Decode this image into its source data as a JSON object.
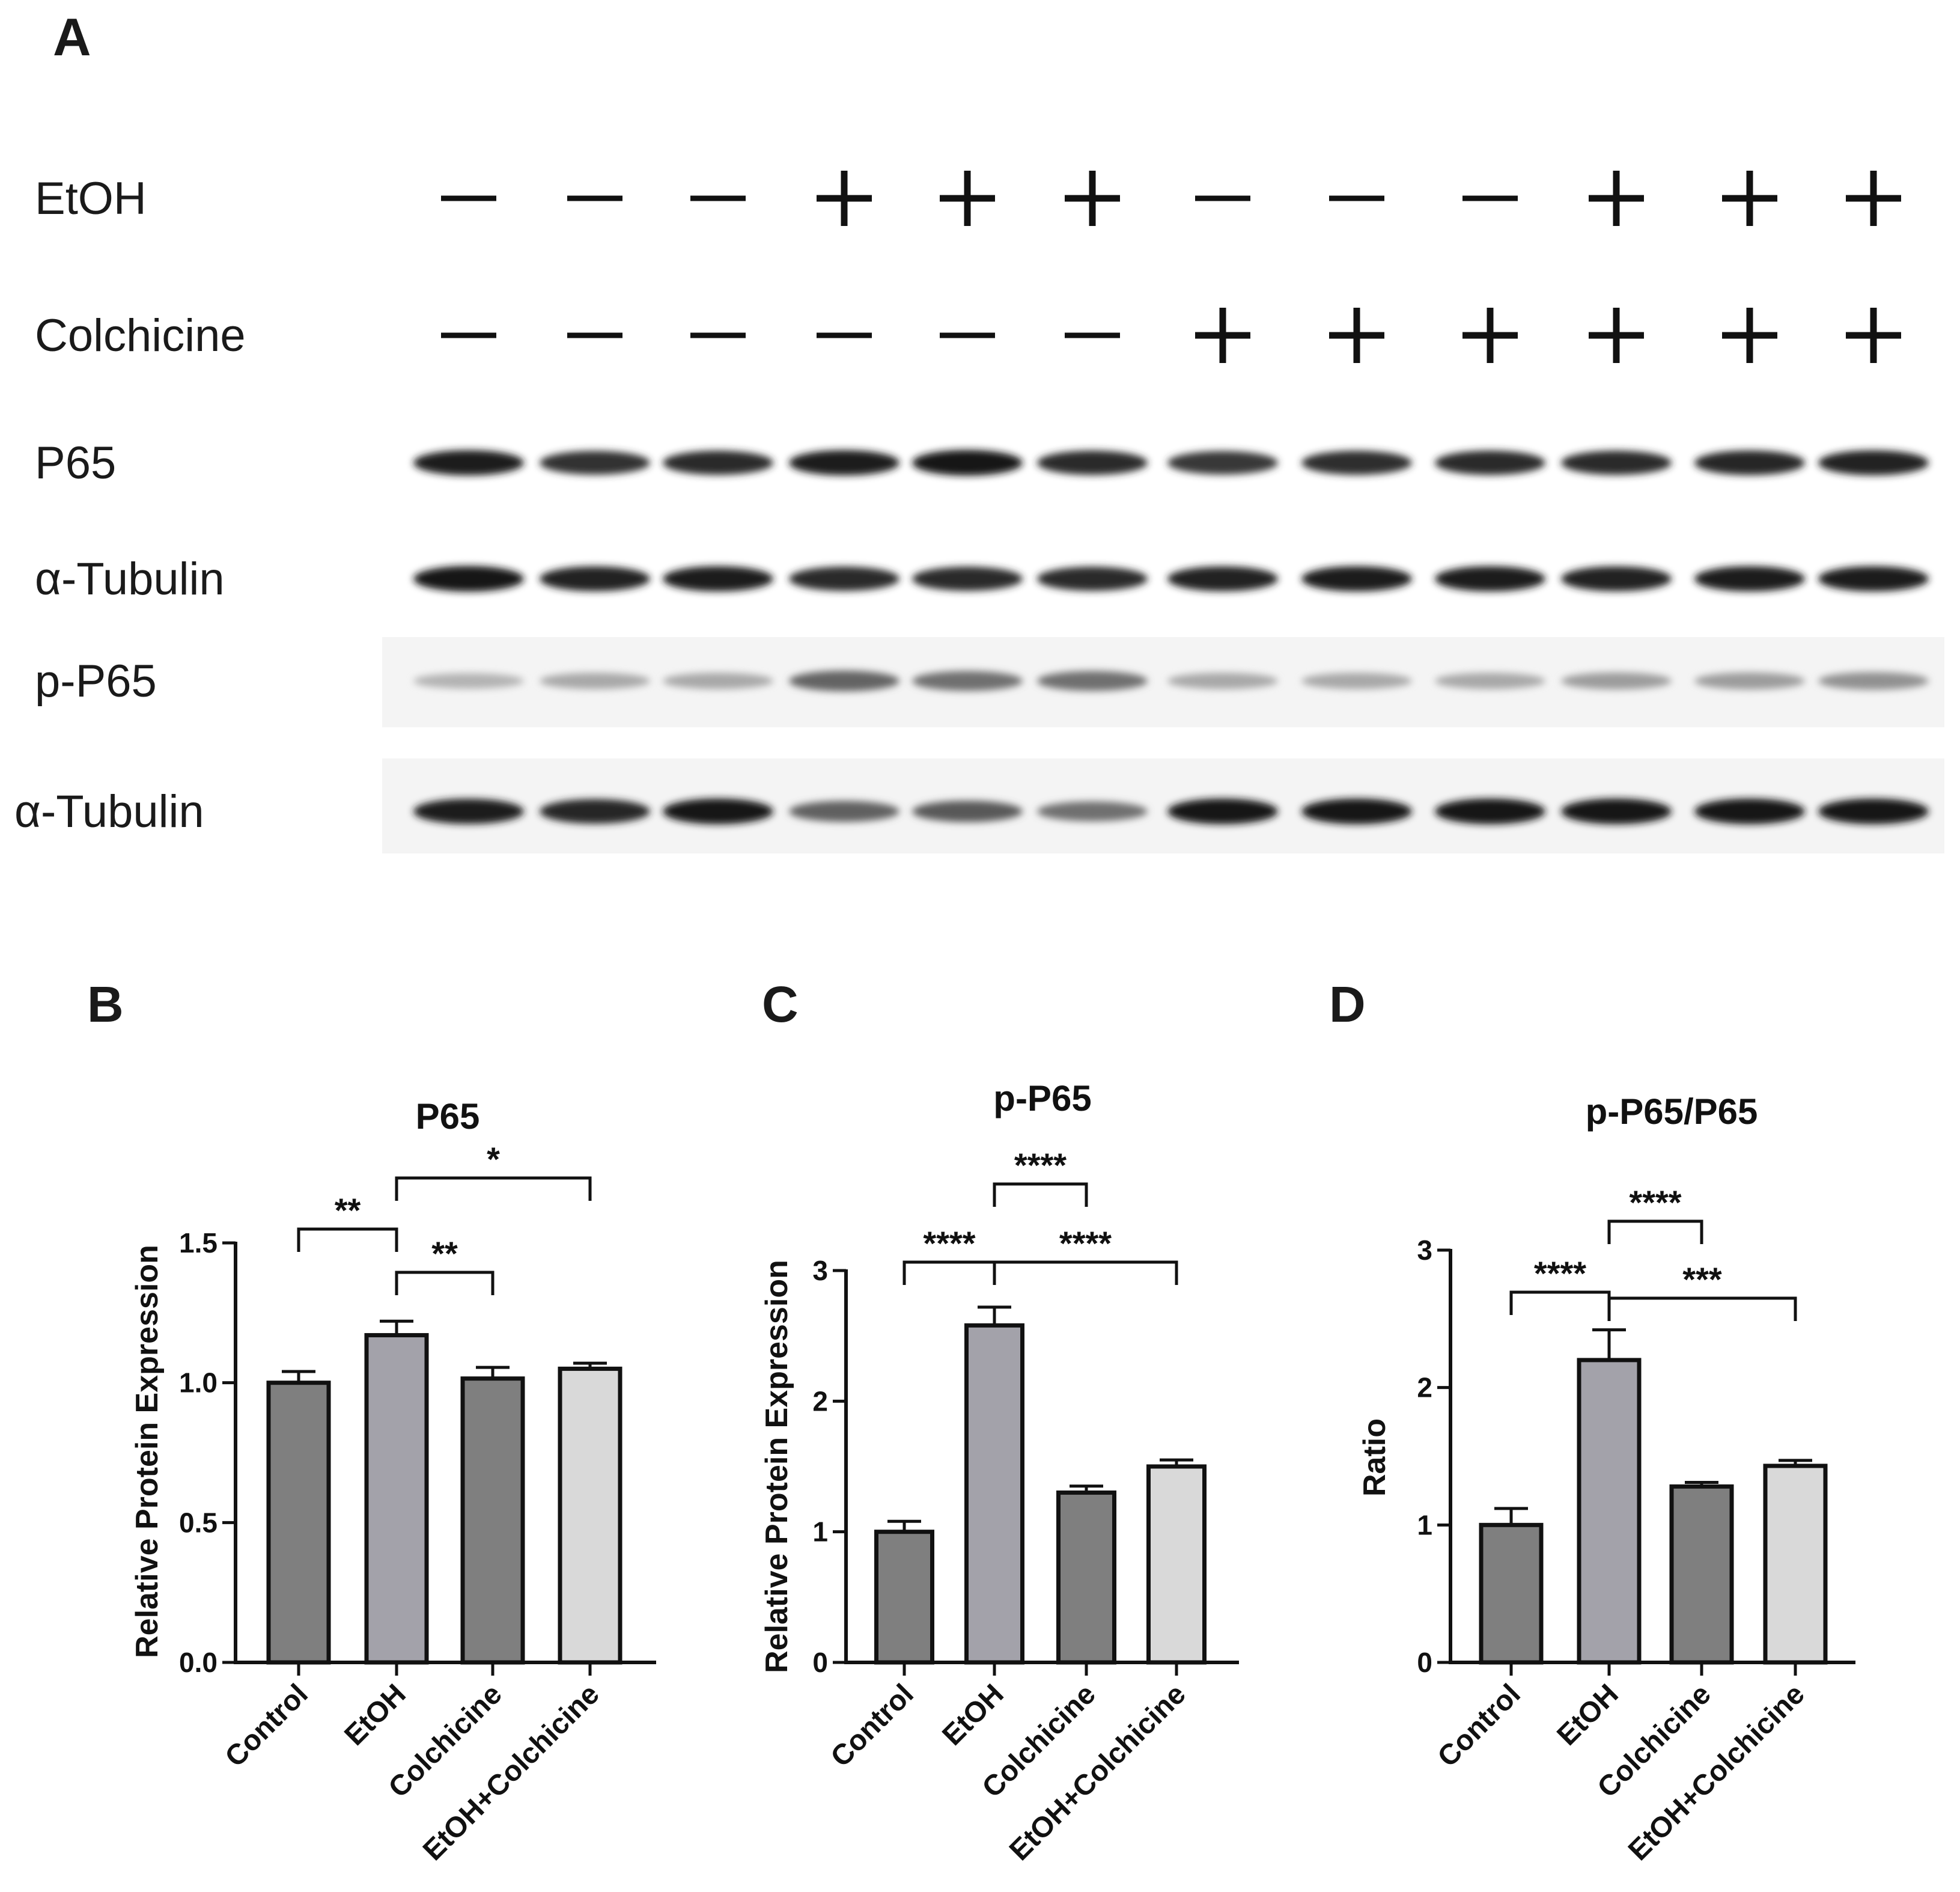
{
  "panel_labels": [
    "A",
    "B",
    "C",
    "D"
  ],
  "blot": {
    "treatments": [
      {
        "label": "EtOH",
        "signs": [
          "−",
          "−",
          "−",
          "+",
          "+",
          "+",
          "−",
          "−",
          "−",
          "+",
          "+",
          "+"
        ]
      },
      {
        "label": "Colchicine",
        "signs": [
          "−",
          "−",
          "−",
          "−",
          "−",
          "−",
          "+",
          "+",
          "+",
          "+",
          "+",
          "+"
        ]
      }
    ],
    "rows": [
      {
        "label": "P65",
        "band_intensity": [
          0.92,
          0.82,
          0.85,
          0.92,
          0.95,
          0.86,
          0.8,
          0.84,
          0.86,
          0.85,
          0.88,
          0.9
        ]
      },
      {
        "label": "α-Tubulin",
        "band_intensity": [
          0.95,
          0.9,
          0.92,
          0.86,
          0.85,
          0.85,
          0.9,
          0.92,
          0.92,
          0.9,
          0.92,
          0.92
        ]
      },
      {
        "label": "p-P65",
        "band_intensity": [
          0.25,
          0.3,
          0.3,
          0.6,
          0.55,
          0.55,
          0.3,
          0.3,
          0.3,
          0.35,
          0.35,
          0.4
        ]
      },
      {
        "label": "α-Tubulin",
        "band_intensity": [
          0.92,
          0.88,
          0.95,
          0.62,
          0.65,
          0.55,
          0.95,
          0.95,
          0.95,
          0.95,
          0.95,
          0.95
        ]
      }
    ]
  },
  "chart_data": [
    {
      "panel": "B",
      "type": "bar",
      "title": "P65",
      "ylabel": "Relative Protein Expression",
      "xlabel": "",
      "categories": [
        "Control",
        "EtOH",
        "Colchicine",
        "EtOH+Colchicine"
      ],
      "values": [
        1.0,
        1.17,
        1.015,
        1.05
      ],
      "errors": [
        0.04,
        0.05,
        0.04,
        0.02
      ],
      "colors": [
        "#7f7f7f",
        "#a3a2aa",
        "#7f7f7f",
        "#d9d9d9"
      ],
      "ylim": [
        0,
        1.5
      ],
      "yticks": [
        "0.0",
        "0.5",
        "1.0",
        "1.5"
      ],
      "grid": false,
      "significance": [
        {
          "from": 0,
          "to": 1,
          "label": "**"
        },
        {
          "from": 1,
          "to": 2,
          "label": "**"
        },
        {
          "from": 1,
          "to": 3,
          "label": "*"
        }
      ]
    },
    {
      "panel": "C",
      "type": "bar",
      "title": "p-P65",
      "ylabel": "Relative Protein Expression",
      "xlabel": "",
      "categories": [
        "Control",
        "EtOH",
        "Colchicine",
        "EtOH+Colchicine"
      ],
      "values": [
        1.0,
        2.58,
        1.3,
        1.5
      ],
      "errors": [
        0.08,
        0.14,
        0.05,
        0.05
      ],
      "colors": [
        "#7f7f7f",
        "#a3a2aa",
        "#7f7f7f",
        "#d9d9d9"
      ],
      "ylim": [
        0,
        3
      ],
      "yticks": [
        "0",
        "1",
        "2",
        "3"
      ],
      "grid": false,
      "significance": [
        {
          "from": 0,
          "to": 1,
          "label": "****"
        },
        {
          "from": 1,
          "to": 2,
          "label": "****"
        },
        {
          "from": 1,
          "to": 3,
          "label": "****"
        }
      ]
    },
    {
      "panel": "D",
      "type": "bar",
      "title": "p-P65/P65",
      "ylabel": "Ratio",
      "xlabel": "",
      "categories": [
        "Control",
        "EtOH",
        "Colchicine",
        "EtOH+Colchicine"
      ],
      "values": [
        1.0,
        2.2,
        1.28,
        1.43
      ],
      "errors": [
        0.12,
        0.22,
        0.03,
        0.04
      ],
      "colors": [
        "#7f7f7f",
        "#a3a2aa",
        "#7f7f7f",
        "#d9d9d9"
      ],
      "ylim": [
        0,
        3
      ],
      "yticks": [
        "0",
        "1",
        "2",
        "3"
      ],
      "grid": false,
      "significance": [
        {
          "from": 0,
          "to": 1,
          "label": "****"
        },
        {
          "from": 1,
          "to": 2,
          "label": "****"
        },
        {
          "from": 1,
          "to": 3,
          "label": "***"
        }
      ]
    }
  ]
}
